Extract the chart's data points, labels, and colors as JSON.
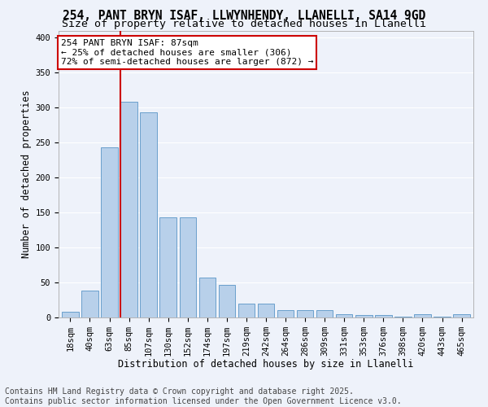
{
  "title1": "254, PANT BRYN ISAF, LLWYNHENDY, LLANELLI, SA14 9GD",
  "title2": "Size of property relative to detached houses in Llanelli",
  "xlabel": "Distribution of detached houses by size in Llanelli",
  "ylabel": "Number of detached properties",
  "categories": [
    "18sqm",
    "40sqm",
    "63sqm",
    "85sqm",
    "107sqm",
    "130sqm",
    "152sqm",
    "174sqm",
    "197sqm",
    "219sqm",
    "242sqm",
    "264sqm",
    "286sqm",
    "309sqm",
    "331sqm",
    "353sqm",
    "376sqm",
    "398sqm",
    "420sqm",
    "443sqm",
    "465sqm"
  ],
  "values": [
    8,
    38,
    243,
    308,
    293,
    143,
    143,
    57,
    47,
    20,
    20,
    10,
    10,
    10,
    5,
    3,
    3,
    1,
    5,
    1,
    5
  ],
  "bar_color": "#b8d0ea",
  "bar_edge_color": "#6aa0cc",
  "red_line_x": 3.0,
  "annotation_text": "254 PANT BRYN ISAF: 87sqm\n← 25% of detached houses are smaller (306)\n72% of semi-detached houses are larger (872) →",
  "annotation_box_color": "#ffffff",
  "annotation_box_edge": "#cc0000",
  "footer": "Contains HM Land Registry data © Crown copyright and database right 2025.\nContains public sector information licensed under the Open Government Licence v3.0.",
  "ylim": [
    0,
    410
  ],
  "yticks": [
    0,
    50,
    100,
    150,
    200,
    250,
    300,
    350,
    400
  ],
  "background_color": "#eef2fa",
  "grid_color": "#ffffff",
  "title_fontsize": 10.5,
  "subtitle_fontsize": 9.5,
  "axis_label_fontsize": 8.5,
  "tick_fontsize": 7.5,
  "footer_fontsize": 7,
  "annot_fontsize": 8
}
